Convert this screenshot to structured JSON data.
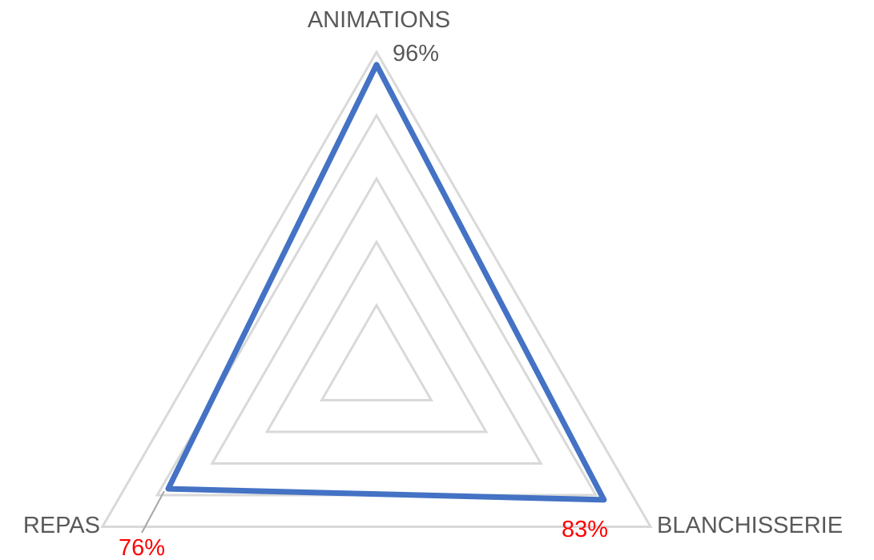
{
  "chart_data": {
    "type": "radar",
    "categories": [
      "ANIMATIONS",
      "BLANCHISSERIE",
      "REPAS"
    ],
    "series": [
      {
        "values": [
          0.96,
          0.83,
          0.76
        ],
        "value_labels": [
          "96%",
          "83%",
          "76%"
        ],
        "color": "#4472C4"
      }
    ],
    "rlim": [
      0,
      1
    ],
    "grid": true,
    "grid_levels": 5,
    "grid_color": "#D9D9D9",
    "category_label_color": "#595959",
    "value_label_colors": [
      "#595959",
      "#FF0000",
      "#FF0000"
    ]
  }
}
